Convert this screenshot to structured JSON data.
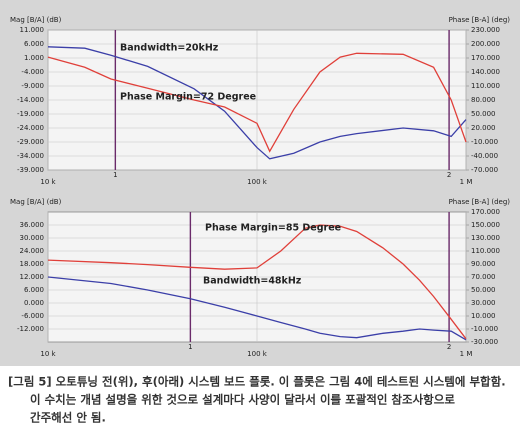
{
  "chart_data": [
    {
      "type": "line",
      "xlog": true,
      "grid": true,
      "ylabel": "Mag [B/A] (dB)",
      "y2label": "Phase [B-A] (deg)",
      "x": [
        10000,
        15000,
        20000,
        30000,
        50000,
        70000,
        100000,
        115000,
        150000,
        200000,
        250000,
        300000,
        500000,
        700000,
        850000,
        1000000
      ],
      "series": [
        {
          "color": "#3b3fa8",
          "values": [
            5,
            4.5,
            2,
            -2,
            -10,
            -18,
            -31,
            -35,
            -33,
            -29,
            -27,
            -26,
            -24,
            -25,
            -27,
            -21
          ]
        },
        {
          "color": "#e0403a",
          "axis": "y2",
          "values": [
            172,
            150,
            125,
            105,
            80,
            65,
            30,
            -30,
            60,
            140,
            172,
            180,
            178,
            150,
            80,
            -10
          ]
        }
      ],
      "xlim": [
        10000,
        1000000
      ],
      "xticks": [
        {
          "value": 10000,
          "label": "10 k"
        },
        {
          "value": 100000,
          "label": "100 k"
        },
        {
          "value": 1000000,
          "label": "1 M"
        }
      ],
      "ylim": [
        -39,
        11
      ],
      "yticks": [
        {
          "value": 11,
          "label": "11.000"
        },
        {
          "value": 6,
          "label": "6.000"
        },
        {
          "value": 1,
          "label": "1.000"
        },
        {
          "value": -4,
          "label": "-4.000"
        },
        {
          "value": -9,
          "label": "-9.000"
        },
        {
          "value": -14,
          "label": "-14.000"
        },
        {
          "value": -19,
          "label": "-19.000"
        },
        {
          "value": -24,
          "label": "-24.000"
        },
        {
          "value": -29,
          "label": "-29.000"
        },
        {
          "value": -34,
          "label": "-34.000"
        },
        {
          "value": -39,
          "label": "-39.000"
        }
      ],
      "y2lim": [
        -70,
        230
      ],
      "y2ticks": [
        {
          "value": 230,
          "label": "230.000"
        },
        {
          "value": 200,
          "label": "200.000"
        },
        {
          "value": 170,
          "label": "170.000"
        },
        {
          "value": 140,
          "label": "140.000"
        },
        {
          "value": 110,
          "label": "110.000"
        },
        {
          "value": 80,
          "label": "80.000"
        },
        {
          "value": 50,
          "label": "50.000"
        },
        {
          "value": 20,
          "label": "20.000"
        },
        {
          "value": -10,
          "label": "-10.000"
        },
        {
          "value": -40,
          "label": "-40.000"
        },
        {
          "value": -70,
          "label": "-70.000"
        }
      ],
      "cursors": [
        {
          "label": "1",
          "x": 21000
        },
        {
          "label": "2",
          "x": 830000
        }
      ],
      "annotations": [
        {
          "text": "Bandwidth=20kHz",
          "color": "#2a35c8"
        },
        {
          "text": "Phase Margin=72 Degree",
          "color": "#e0302a"
        }
      ]
    },
    {
      "type": "line",
      "xlog": true,
      "grid": true,
      "ylabel": "Mag [B/A] (dB)",
      "y2label": "Phase [B-A] (deg)",
      "x": [
        10000,
        20000,
        30000,
        48000,
        70000,
        100000,
        130000,
        170000,
        200000,
        250000,
        300000,
        400000,
        500000,
        600000,
        700000,
        850000,
        1000000
      ],
      "series": [
        {
          "color": "#3b3fa8",
          "values": [
            12,
            9,
            6,
            2,
            -2,
            -6,
            -9,
            -12,
            -14,
            -15.5,
            -16,
            -14,
            -13,
            -12,
            -12.5,
            -13,
            -17
          ]
        },
        {
          "color": "#e0403a",
          "axis": "y2",
          "values": [
            96,
            92,
            89,
            85,
            82,
            84,
            110,
            145,
            150,
            148,
            140,
            115,
            90,
            65,
            40,
            5,
            -25
          ]
        }
      ],
      "xlim": [
        10000,
        1000000
      ],
      "xticks": [
        {
          "value": 10000,
          "label": "10 k"
        },
        {
          "value": 100000,
          "label": "100 k"
        },
        {
          "value": 1000000,
          "label": "1 M"
        }
      ],
      "ylim": [
        -18,
        42
      ],
      "yticks": [
        {
          "value": 36,
          "label": "36.000"
        },
        {
          "value": 30,
          "label": "30.000"
        },
        {
          "value": 24,
          "label": "24.000"
        },
        {
          "value": 18,
          "label": "18.000"
        },
        {
          "value": 12,
          "label": "12.000"
        },
        {
          "value": 6,
          "label": "6.000"
        },
        {
          "value": 0,
          "label": "0.000"
        },
        {
          "value": -6,
          "label": "-6.000"
        },
        {
          "value": -12,
          "label": "-12.000"
        }
      ],
      "y2lim": [
        -30,
        170
      ],
      "y2ticks": [
        {
          "value": 170,
          "label": "170.000"
        },
        {
          "value": 150,
          "label": "150.000"
        },
        {
          "value": 130,
          "label": "130.000"
        },
        {
          "value": 110,
          "label": "110.000"
        },
        {
          "value": 90,
          "label": "90.000"
        },
        {
          "value": 70,
          "label": "70.000"
        },
        {
          "value": 50,
          "label": "50.000"
        },
        {
          "value": 30,
          "label": "30.000"
        },
        {
          "value": 10,
          "label": "10.000"
        },
        {
          "value": -10,
          "label": "-10.000"
        },
        {
          "value": -30,
          "label": "-30.000"
        }
      ],
      "cursors": [
        {
          "label": "1",
          "x": 48000
        },
        {
          "label": "2",
          "x": 830000
        }
      ],
      "annotations": [
        {
          "text": "Phase Margin=85 Degree",
          "color": "#e0302a"
        },
        {
          "text": "Bandwidth=48kHz",
          "color": "#2a35c8"
        }
      ]
    }
  ],
  "caption": [
    "[그림 5] 오토튜닝 전(위), 후(아래) 시스템 보드 플롯. 이 플롯은 그림 4에 테스트된 시스템에 부합함.",
    "이 수치는 개념 설명을 위한 것으로 설계마다 사양이 달라서 이를 포괄적인 참조사항으로",
    "간주해선 안 됨."
  ]
}
